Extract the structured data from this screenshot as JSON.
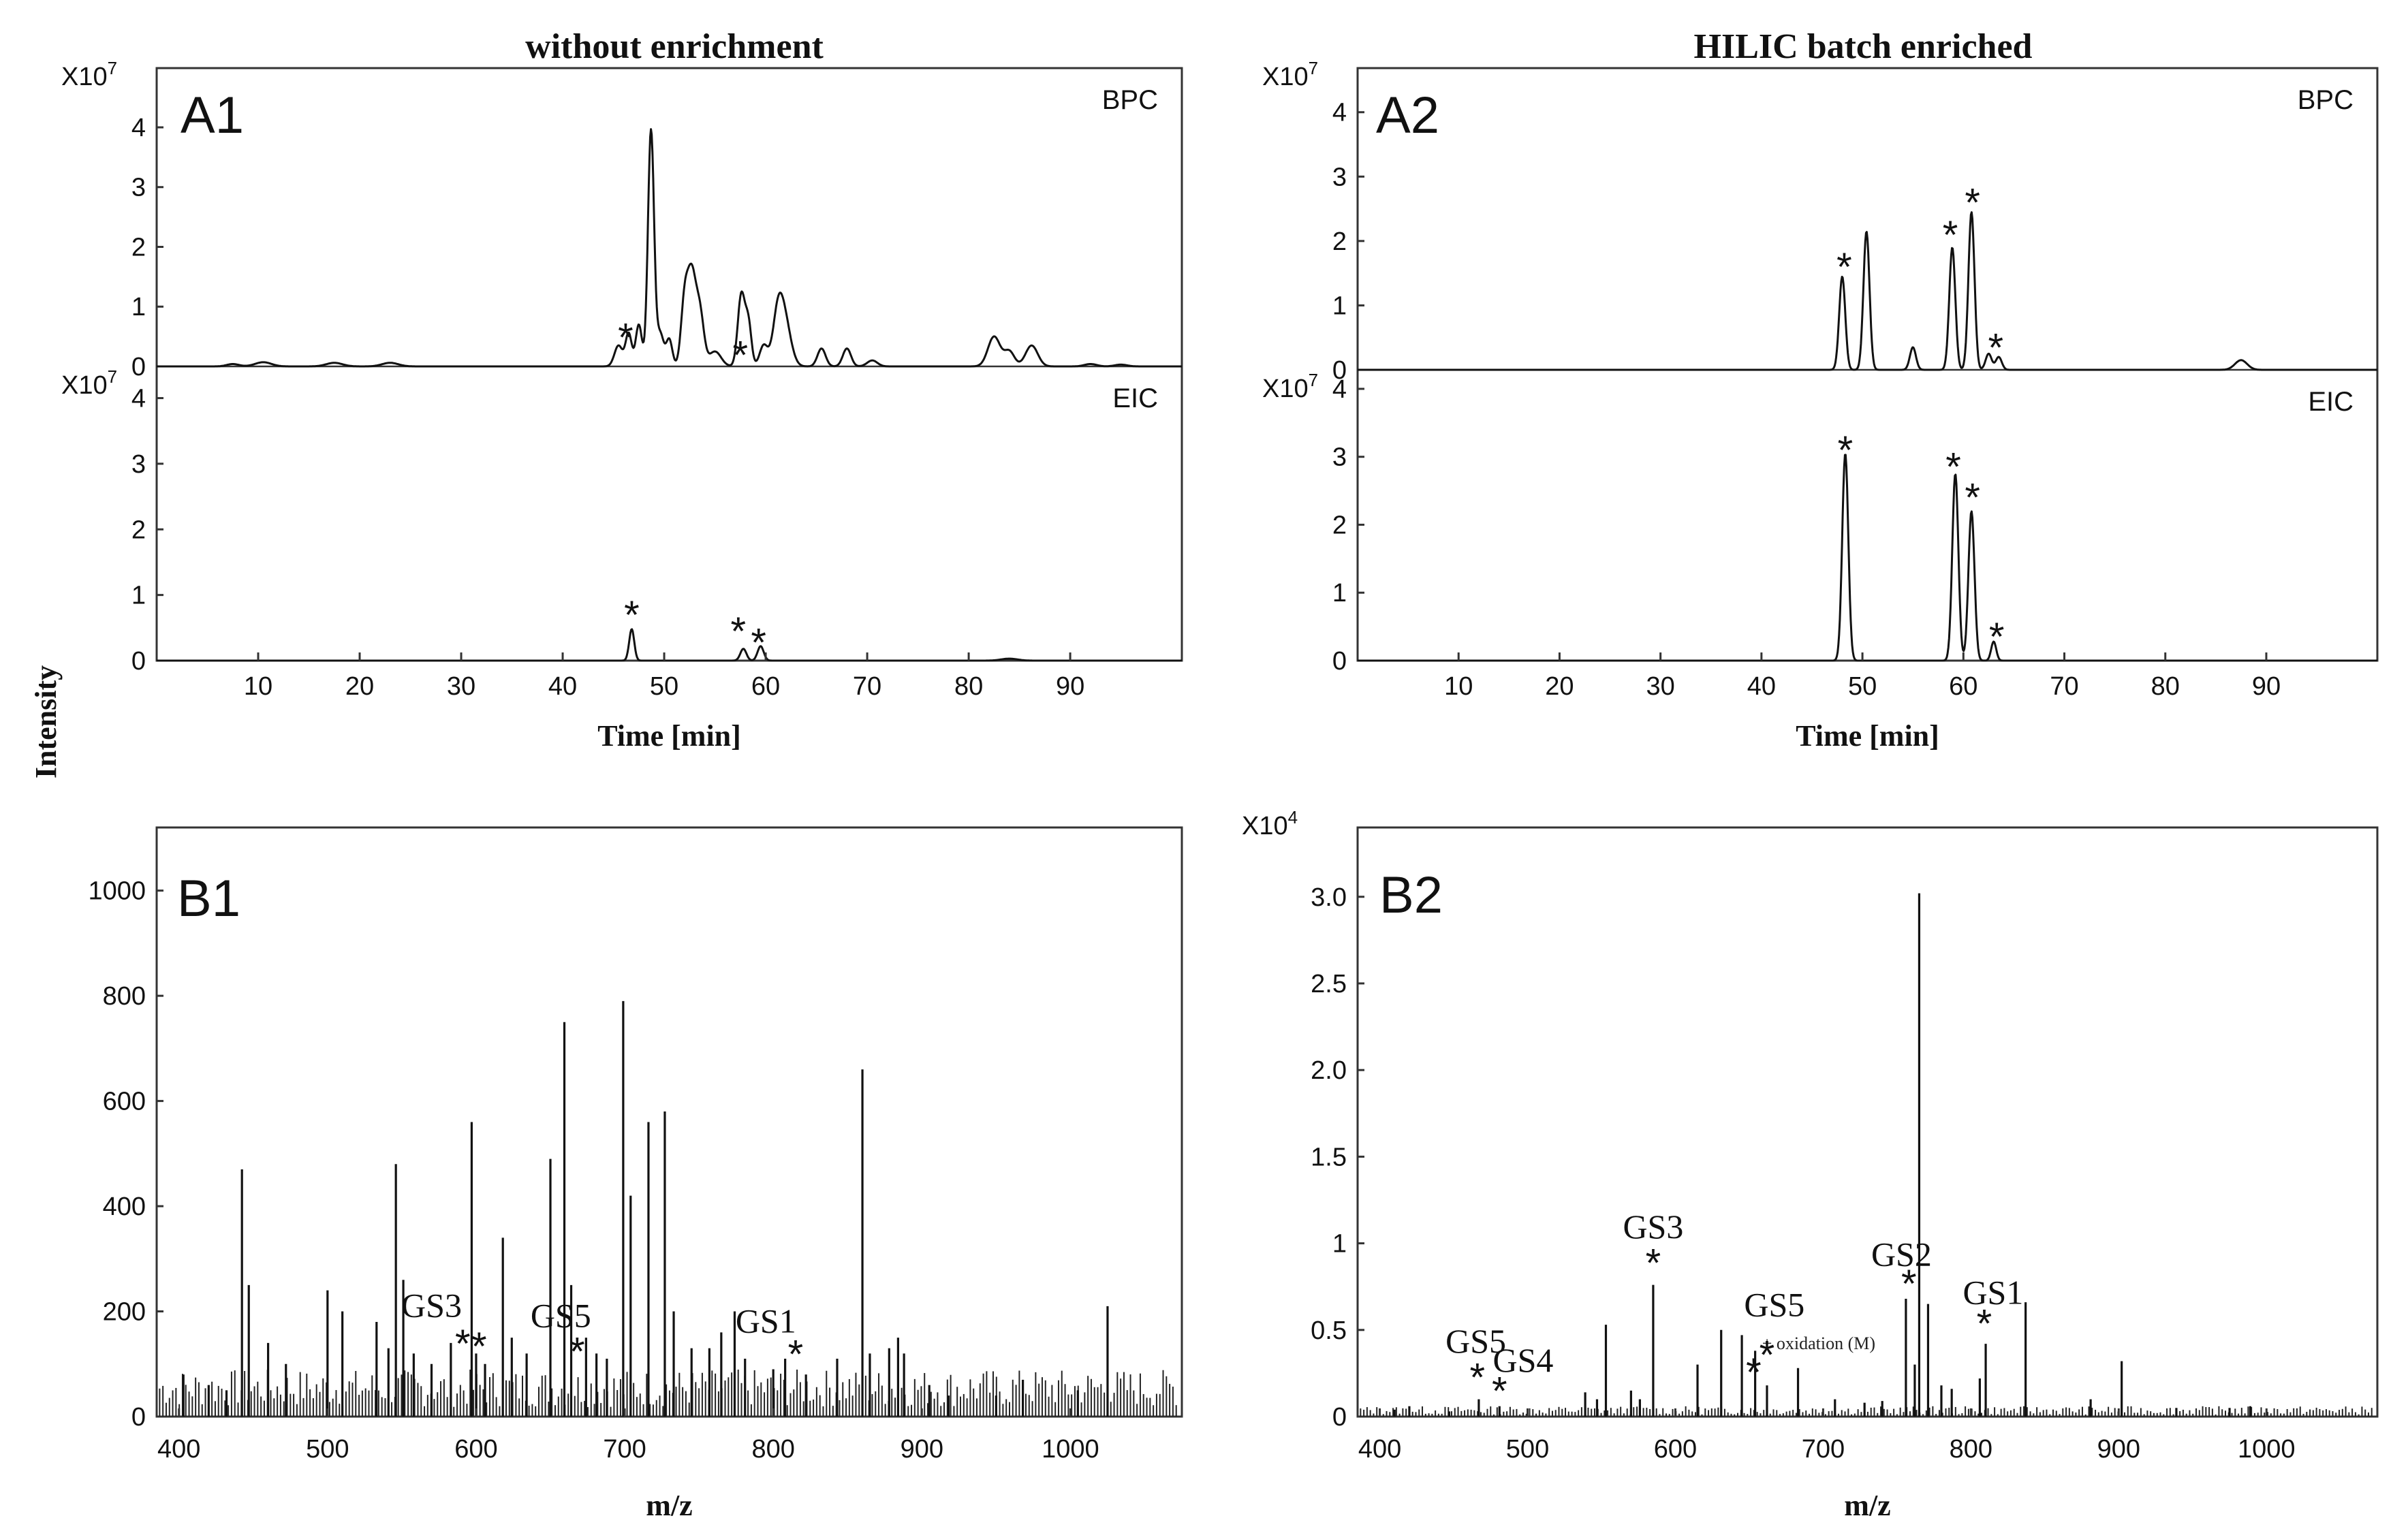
{
  "figure": {
    "y_axis_title": "Intensity",
    "columns": [
      "without enrichment",
      "HILIC batch enriched"
    ]
  },
  "chart_data": [
    {
      "id": "A1",
      "type": "line",
      "panel_label": "A1",
      "xlabel": "Time [min]",
      "xlim": [
        0,
        101
      ],
      "x_ticks": [
        "10",
        "20",
        "30",
        "40",
        "50",
        "60",
        "70",
        "80",
        "90"
      ],
      "traces": [
        {
          "name": "BPC",
          "multiplier_label": "X10",
          "multiplier_exp": "7",
          "ylim": [
            0,
            4.9
          ],
          "y_ticks": [
            "0",
            "1",
            "2",
            "3",
            "4"
          ],
          "peaks": [
            [
              7.5,
              0.04,
              0.6
            ],
            [
              10.5,
              0.07,
              0.8
            ],
            [
              17.5,
              0.06,
              0.8
            ],
            [
              23,
              0.06,
              0.8
            ],
            [
              45.5,
              0.35,
              0.4
            ],
            [
              46.5,
              0.55,
              0.3
            ],
            [
              47.5,
              0.7,
              0.3
            ],
            [
              48.7,
              3.95,
              0.3
            ],
            [
              49.6,
              0.55,
              0.35
            ],
            [
              50.5,
              0.45,
              0.3
            ],
            [
              52,
              1.05,
              0.35
            ],
            [
              52.7,
              1.45,
              0.4
            ],
            [
              53.5,
              0.9,
              0.4
            ],
            [
              55,
              0.25,
              0.6
            ],
            [
              57.6,
              1.2,
              0.35
            ],
            [
              58.3,
              0.7,
              0.3
            ],
            [
              59.8,
              0.35,
              0.4
            ],
            [
              61.2,
              0.8,
              0.5
            ],
            [
              61.9,
              0.7,
              0.6
            ],
            [
              65.5,
              0.3,
              0.4
            ],
            [
              68,
              0.3,
              0.4
            ],
            [
              70.5,
              0.1,
              0.5
            ],
            [
              82.5,
              0.5,
              0.6
            ],
            [
              84,
              0.25,
              0.5
            ],
            [
              86.2,
              0.35,
              0.6
            ],
            [
              92,
              0.04,
              0.6
            ],
            [
              95,
              0.03,
              0.6
            ]
          ],
          "markers": [
            [
              46.2,
              0.6
            ],
            [
              57.5,
              0.3
            ]
          ]
        },
        {
          "name": "EIC",
          "multiplier_label": "X10",
          "multiplier_exp": "7",
          "ylim": [
            0,
            4.4
          ],
          "y_ticks": [
            "0",
            "1",
            "2",
            "3",
            "4"
          ],
          "peaks": [
            [
              46.8,
              0.48,
              0.25
            ],
            [
              57.8,
              0.18,
              0.3
            ],
            [
              59.5,
              0.22,
              0.3
            ],
            [
              84,
              0.03,
              0.8
            ]
          ],
          "markers": [
            [
              46.8,
              0.8
            ],
            [
              57.3,
              0.55
            ],
            [
              59.3,
              0.38
            ]
          ]
        }
      ]
    },
    {
      "id": "A2",
      "type": "line",
      "panel_label": "A2",
      "xlabel": "Time [min]",
      "xlim": [
        0,
        101
      ],
      "x_ticks": [
        "10",
        "20",
        "30",
        "40",
        "50",
        "60",
        "70",
        "80",
        "90"
      ],
      "traces": [
        {
          "name": "BPC",
          "multiplier_label": "X10",
          "multiplier_exp": "7",
          "ylim": [
            0,
            4.6
          ],
          "y_ticks": [
            "0",
            "1",
            "2",
            "3",
            "4"
          ],
          "peaks": [
            [
              48,
              1.45,
              0.3
            ],
            [
              50.4,
              2.15,
              0.3
            ],
            [
              55,
              0.35,
              0.3
            ],
            [
              58.9,
              1.9,
              0.3
            ],
            [
              60.8,
              2.45,
              0.3
            ],
            [
              62.5,
              0.25,
              0.3
            ],
            [
              63.5,
              0.2,
              0.3
            ],
            [
              87.5,
              0.15,
              0.6
            ]
          ],
          "markers": [
            [
              48.2,
              1.7
            ],
            [
              58.7,
              2.2
            ],
            [
              60.9,
              2.7
            ],
            [
              63.2,
              0.45
            ]
          ]
        },
        {
          "name": "EIC",
          "multiplier_label": "X10",
          "multiplier_exp": "7",
          "ylim": [
            0,
            4.2
          ],
          "y_ticks": [
            "0",
            "1",
            "2",
            "3",
            "4"
          ],
          "peaks": [
            [
              48.3,
              3.05,
              0.3
            ],
            [
              59.2,
              2.75,
              0.3
            ],
            [
              60.8,
              2.2,
              0.3
            ],
            [
              63,
              0.28,
              0.25
            ]
          ],
          "markers": [
            [
              48.3,
              3.2
            ],
            [
              59,
              2.95
            ],
            [
              60.9,
              2.5
            ],
            [
              63.3,
              0.45
            ]
          ]
        }
      ]
    },
    {
      "id": "B1",
      "type": "bar",
      "panel_label": "B1",
      "xlabel": "m/z",
      "xlim": [
        385,
        1075
      ],
      "ylim": [
        0,
        1120
      ],
      "x_ticks": [
        "400",
        "500",
        "600",
        "700",
        "800",
        "900",
        "1000"
      ],
      "y_ticks": [
        "0",
        "200",
        "400",
        "600",
        "800",
        "1000"
      ],
      "peaks": [
        [
          403,
          80
        ],
        [
          420,
          60
        ],
        [
          432,
          50
        ],
        [
          442.4,
          470
        ],
        [
          447,
          250
        ],
        [
          460,
          140
        ],
        [
          472,
          100
        ],
        [
          500,
          240
        ],
        [
          510,
          200
        ],
        [
          533,
          180
        ],
        [
          541,
          130
        ],
        [
          546,
          480
        ],
        [
          551,
          260
        ],
        [
          558,
          120
        ],
        [
          570,
          100
        ],
        [
          583,
          140
        ],
        [
          597,
          560
        ],
        [
          600,
          120
        ],
        [
          606,
          100
        ],
        [
          618,
          340
        ],
        [
          624,
          150
        ],
        [
          634,
          120
        ],
        [
          650,
          490
        ],
        [
          659.4,
          750
        ],
        [
          664,
          250
        ],
        [
          674,
          150
        ],
        [
          681,
          120
        ],
        [
          688,
          110
        ],
        [
          699,
          790
        ],
        [
          704,
          420
        ],
        [
          716,
          560
        ],
        [
          727,
          580
        ],
        [
          733,
          200
        ],
        [
          745,
          130
        ],
        [
          757,
          130
        ],
        [
          765,
          160
        ],
        [
          774,
          200
        ],
        [
          781,
          110
        ],
        [
          800,
          90
        ],
        [
          808,
          110
        ],
        [
          822,
          80
        ],
        [
          843,
          110
        ],
        [
          860,
          660
        ],
        [
          865,
          120
        ],
        [
          878,
          130
        ],
        [
          884,
          150
        ],
        [
          888,
          120
        ],
        [
          905,
          60
        ],
        [
          918,
          40
        ],
        [
          950,
          40
        ],
        [
          968,
          70
        ],
        [
          1005,
          50
        ],
        [
          1025,
          210
        ]
      ],
      "grass_base": 45,
      "annotations": [
        {
          "text": "GS3",
          "x": 570,
          "y": 190
        },
        {
          "text": "GS5",
          "x": 657,
          "y": 170
        },
        {
          "text": "GS1",
          "x": 795,
          "y": 160
        }
      ],
      "markers": [
        [
          591,
          110
        ],
        [
          602,
          105
        ],
        [
          668,
          95
        ],
        [
          815,
          90
        ]
      ]
    },
    {
      "id": "B2",
      "type": "bar",
      "panel_label": "B2",
      "xlabel": "m/z",
      "multiplier_label": "X10",
      "multiplier_exp": "4",
      "xlim": [
        385,
        1075
      ],
      "ylim": [
        0,
        3.4
      ],
      "x_ticks": [
        "400",
        "500",
        "600",
        "700",
        "800",
        "900",
        "1000"
      ],
      "y_ticks": [
        "0",
        "0.5",
        "1",
        "1.5",
        "2.0",
        "2.5",
        "3.0"
      ],
      "peaks": [
        [
          410,
          0.04
        ],
        [
          420,
          0.06
        ],
        [
          447,
          0.03
        ],
        [
          467,
          0.1
        ],
        [
          481,
          0.06
        ],
        [
          539,
          0.14
        ],
        [
          547,
          0.1
        ],
        [
          553,
          0.53
        ],
        [
          570,
          0.15
        ],
        [
          576,
          0.1
        ],
        [
          585,
          0.76
        ],
        [
          615,
          0.3
        ],
        [
          631,
          0.5
        ],
        [
          645,
          0.47
        ],
        [
          654,
          0.38
        ],
        [
          662,
          0.18
        ],
        [
          683,
          0.28
        ],
        [
          708,
          0.1
        ],
        [
          728,
          0.08
        ],
        [
          740,
          0.09
        ],
        [
          756,
          0.68
        ],
        [
          762,
          0.3
        ],
        [
          765,
          3.02
        ],
        [
          771,
          0.65
        ],
        [
          780,
          0.18
        ],
        [
          787,
          0.16
        ],
        [
          806,
          0.22
        ],
        [
          810,
          0.42
        ],
        [
          837,
          0.66
        ],
        [
          881,
          0.1
        ],
        [
          902,
          0.32
        ],
        [
          939,
          0.05
        ],
        [
          975,
          0.05
        ],
        [
          989,
          0.06
        ]
      ],
      "grass_base": 0.03,
      "annotations": [
        {
          "text": "GS3",
          "x": 585,
          "y": 1.03
        },
        {
          "text": "GS5",
          "x": 465,
          "y": 0.37
        },
        {
          "text": "GS4",
          "x": 497,
          "y": 0.26
        },
        {
          "text": "GS5",
          "x": 667,
          "y": 0.58
        },
        {
          "text": "GS2",
          "x": 753,
          "y": 0.87
        },
        {
          "text": "GS1",
          "x": 815,
          "y": 0.65
        }
      ],
      "small_annotation": {
        "text": "+ oxidation (M)",
        "x": 697,
        "y": 0.39
      },
      "markers": [
        [
          585,
          0.8
        ],
        [
          466,
          0.14
        ],
        [
          481,
          0.06
        ],
        [
          653,
          0.17
        ],
        [
          662,
          0.27
        ],
        [
          758,
          0.68
        ],
        [
          809,
          0.45
        ]
      ]
    }
  ]
}
